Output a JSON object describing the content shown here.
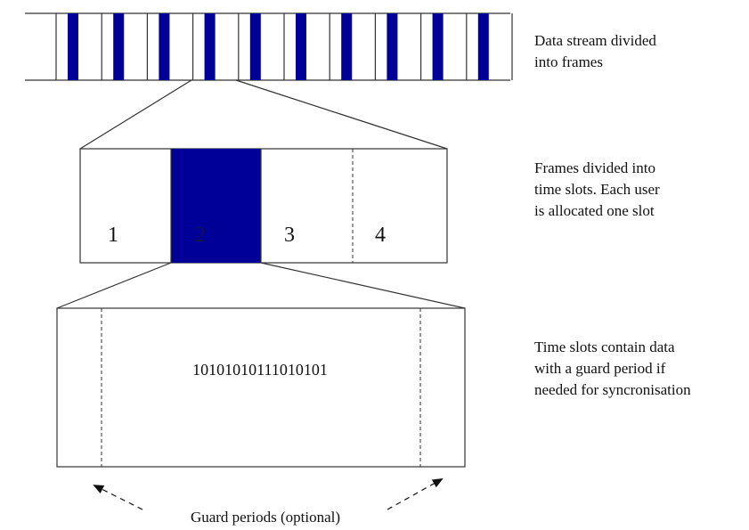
{
  "colors": {
    "frame_fill": "#000099",
    "stroke": "#333333",
    "background": "#ffffff"
  },
  "stream": {
    "description": [
      "Data stream divided",
      "into frames"
    ]
  },
  "frame": {
    "slot_labels": [
      "1",
      "2",
      "3",
      "4"
    ],
    "highlighted_slot": 2,
    "description": [
      "Frames divided into",
      "time slots.  Each user",
      "is allocated one slot"
    ]
  },
  "slot": {
    "bits": "10101010111010101",
    "description": [
      "Time slots contain data",
      "with a guard period if",
      "needed for syncronisation"
    ]
  },
  "guard": {
    "label": "Guard periods (optional)"
  }
}
